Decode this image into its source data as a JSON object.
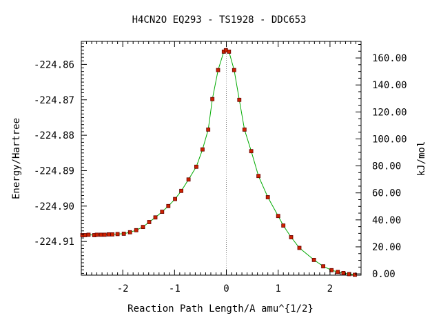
{
  "chart_data": {
    "type": "scatter",
    "title": "H4CN2O   EQ293 - TS1928 - DDC653",
    "xlabel": "Reaction Path Length/A amu^{1/2}",
    "ylabel": "Energy/Hartree",
    "y2label": "kJ/mol",
    "xlim": [
      -2.8,
      2.6
    ],
    "ylim": [
      -224.9195,
      -224.8535
    ],
    "y2lim": [
      -0.97,
      172.3
    ],
    "grid": false,
    "x_ticks": [
      {
        "value": -2,
        "label": "-2"
      },
      {
        "value": -1,
        "label": "-1"
      },
      {
        "value": 0,
        "label": "0"
      },
      {
        "value": 1,
        "label": "1"
      },
      {
        "value": 2,
        "label": "2"
      }
    ],
    "y_ticks": [
      {
        "value": -224.86,
        "label": "-224.86"
      },
      {
        "value": -224.87,
        "label": "-224.87"
      },
      {
        "value": -224.88,
        "label": "-224.88"
      },
      {
        "value": -224.89,
        "label": "-224.89"
      },
      {
        "value": -224.9,
        "label": "-224.90"
      },
      {
        "value": -224.91,
        "label": "-224.91"
      }
    ],
    "y2_ticks": [
      {
        "value": 0,
        "label": "0.00"
      },
      {
        "value": 20,
        "label": "20.00"
      },
      {
        "value": 40,
        "label": "40.00"
      },
      {
        "value": 60,
        "label": "60.00"
      },
      {
        "value": 80,
        "label": "80.00"
      },
      {
        "value": 100,
        "label": "100.00"
      },
      {
        "value": 120,
        "label": "120.00"
      },
      {
        "value": 140,
        "label": "140.00"
      },
      {
        "value": 160,
        "label": "160.00"
      }
    ],
    "ts_x": 0,
    "colors": {
      "curve": "#00aa00",
      "marker_fill": "#cc2200",
      "marker_stroke": "#660000",
      "ts_line": "#888888",
      "axis": "#000000"
    },
    "series": [
      {
        "points": [
          {
            "x": -2.78,
            "y": -224.9082
          },
          {
            "x": -2.73,
            "y": -224.9082
          },
          {
            "x": -2.66,
            "y": -224.9081
          },
          {
            "x": -2.55,
            "y": -224.9082
          },
          {
            "x": -2.5,
            "y": -224.9081
          },
          {
            "x": -2.42,
            "y": -224.9081
          },
          {
            "x": -2.35,
            "y": -224.9081
          },
          {
            "x": -2.27,
            "y": -224.908
          },
          {
            "x": -2.2,
            "y": -224.908
          },
          {
            "x": -2.1,
            "y": -224.9079
          },
          {
            "x": -1.98,
            "y": -224.9078
          },
          {
            "x": -1.86,
            "y": -224.9074
          },
          {
            "x": -1.74,
            "y": -224.9068
          },
          {
            "x": -1.61,
            "y": -224.9059
          },
          {
            "x": -1.49,
            "y": -224.9045
          },
          {
            "x": -1.37,
            "y": -224.9032
          },
          {
            "x": -1.24,
            "y": -224.9016
          },
          {
            "x": -1.12,
            "y": -224.9
          },
          {
            "x": -0.99,
            "y": -224.898
          },
          {
            "x": -0.87,
            "y": -224.8957
          },
          {
            "x": -0.73,
            "y": -224.8925
          },
          {
            "x": -0.58,
            "y": -224.8889
          },
          {
            "x": -0.46,
            "y": -224.884
          },
          {
            "x": -0.35,
            "y": -224.8784
          },
          {
            "x": -0.27,
            "y": -224.8698
          },
          {
            "x": -0.16,
            "y": -224.8616
          },
          {
            "x": -0.05,
            "y": -224.8564
          },
          {
            "x": -0.01,
            "y": -224.856
          },
          {
            "x": 0.05,
            "y": -224.8564
          },
          {
            "x": 0.15,
            "y": -224.8616
          },
          {
            "x": 0.25,
            "y": -224.87
          },
          {
            "x": 0.35,
            "y": -224.8784
          },
          {
            "x": 0.48,
            "y": -224.8845
          },
          {
            "x": 0.62,
            "y": -224.8915
          },
          {
            "x": 0.8,
            "y": -224.8975
          },
          {
            "x": 1.0,
            "y": -224.9028
          },
          {
            "x": 1.1,
            "y": -224.9055
          },
          {
            "x": 1.25,
            "y": -224.9088
          },
          {
            "x": 1.41,
            "y": -224.9118
          },
          {
            "x": 1.69,
            "y": -224.9152
          },
          {
            "x": 1.87,
            "y": -224.917
          },
          {
            "x": 2.03,
            "y": -224.9181
          },
          {
            "x": 2.15,
            "y": -224.9186
          },
          {
            "x": 2.26,
            "y": -224.9189
          },
          {
            "x": 2.37,
            "y": -224.9192
          },
          {
            "x": 2.48,
            "y": -224.9194
          }
        ]
      }
    ]
  }
}
